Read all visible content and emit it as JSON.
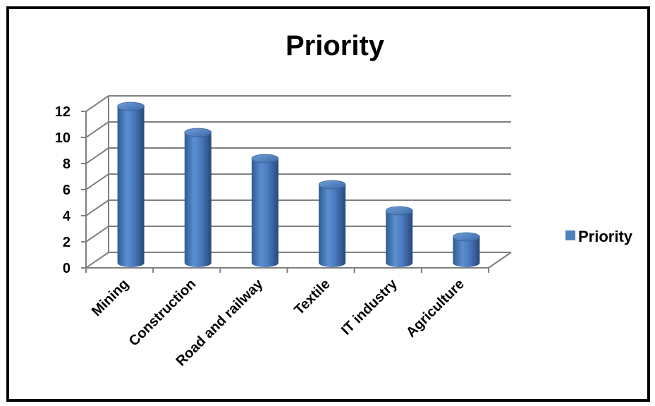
{
  "chart_data": {
    "type": "bar",
    "title": "Priority",
    "categories": [
      "Mining",
      "Construction",
      "Road and railway",
      "Textile",
      "IT industry",
      "Agriculture"
    ],
    "series": [
      {
        "name": "Priority",
        "values": [
          12,
          10,
          8,
          6,
          4,
          2
        ],
        "color": "#4F81BD"
      }
    ],
    "ylim": [
      0,
      12
    ],
    "yticks": [
      0,
      2,
      4,
      6,
      8,
      10,
      12
    ],
    "grid": true,
    "legend_position": "right",
    "style": "3d-cylinder"
  }
}
